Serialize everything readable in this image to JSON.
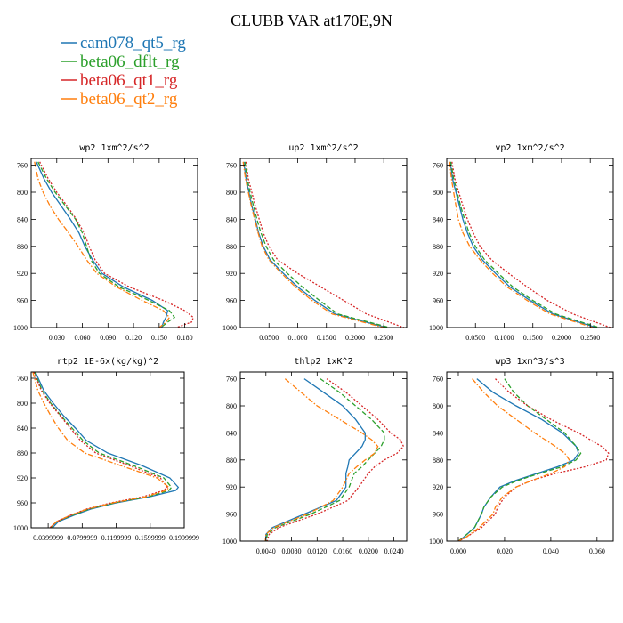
{
  "figure": {
    "title": "CLUBB VAR at170E,9N"
  },
  "legend": [
    {
      "name": "cam078_qt5_rg",
      "color": "#1f77b4",
      "dash": "solid"
    },
    {
      "name": "beta06_dflt_rg",
      "color": "#2ca02c",
      "dash": "dashed"
    },
    {
      "name": "beta06_qt1_rg",
      "color": "#d62728",
      "dash": "dotted"
    },
    {
      "name": "beta06_qt2_rg",
      "color": "#ff7f0e",
      "dash": "dashdot"
    }
  ],
  "chart_data": [
    {
      "type": "line",
      "title": "wp2  1xm^2/s^2",
      "xlim": [
        0,
        0.195
      ],
      "ylim": [
        1000,
        750
      ],
      "xticks": [
        "0.030",
        "0.060",
        "0.090",
        "0.120",
        "0.150",
        "0.180"
      ],
      "xtick_values": [
        0.03,
        0.06,
        0.09,
        0.12,
        0.15,
        0.18
      ],
      "yticks": [
        760,
        800,
        840,
        880,
        920,
        960,
        1000
      ],
      "y": [
        755,
        780,
        800,
        820,
        840,
        860,
        880,
        900,
        920,
        940,
        960,
        975,
        985,
        992,
        1000
      ],
      "series": [
        {
          "name": "cam078_qt5_rg",
          "values": [
            0.006,
            0.015,
            0.024,
            0.035,
            0.046,
            0.056,
            0.063,
            0.072,
            0.083,
            0.108,
            0.142,
            0.16,
            0.158,
            0.155,
            0.153
          ]
        },
        {
          "name": "beta06_dflt_rg",
          "values": [
            0.008,
            0.018,
            0.028,
            0.04,
            0.052,
            0.06,
            0.065,
            0.07,
            0.08,
            0.103,
            0.138,
            0.162,
            0.168,
            0.16,
            0.152
          ]
        },
        {
          "name": "beta06_qt1_rg",
          "values": [
            0.01,
            0.02,
            0.03,
            0.042,
            0.053,
            0.062,
            0.068,
            0.075,
            0.086,
            0.115,
            0.155,
            0.18,
            0.19,
            0.188,
            0.17
          ]
        },
        {
          "name": "beta06_qt2_rg",
          "values": [
            0.004,
            0.008,
            0.014,
            0.022,
            0.032,
            0.044,
            0.055,
            0.065,
            0.077,
            0.1,
            0.13,
            0.155,
            0.162,
            0.158,
            0.15
          ]
        }
      ]
    },
    {
      "type": "line",
      "title": "up2  1xm^2/s^2",
      "xlim": [
        0,
        0.29
      ],
      "ylim": [
        1000,
        750
      ],
      "xticks": [
        "0.0500",
        "0.1000",
        "0.1500",
        "0.2000",
        "0.2500"
      ],
      "xtick_values": [
        0.05,
        0.1,
        0.15,
        0.2,
        0.25
      ],
      "yticks": [
        760,
        800,
        840,
        880,
        920,
        960,
        1000
      ],
      "y": [
        755,
        780,
        800,
        820,
        840,
        860,
        880,
        900,
        920,
        940,
        960,
        980,
        1000
      ],
      "series": [
        {
          "name": "cam078_qt5_rg",
          "values": [
            0.006,
            0.01,
            0.015,
            0.02,
            0.026,
            0.032,
            0.04,
            0.052,
            0.075,
            0.1,
            0.13,
            0.165,
            0.255
          ]
        },
        {
          "name": "beta06_dflt_rg",
          "values": [
            0.008,
            0.012,
            0.017,
            0.023,
            0.029,
            0.036,
            0.045,
            0.058,
            0.082,
            0.108,
            0.138,
            0.17,
            0.26
          ]
        },
        {
          "name": "beta06_qt1_rg",
          "values": [
            0.01,
            0.014,
            0.02,
            0.026,
            0.033,
            0.04,
            0.05,
            0.065,
            0.1,
            0.14,
            0.18,
            0.22,
            0.285
          ]
        },
        {
          "name": "beta06_qt2_rg",
          "values": [
            0.005,
            0.009,
            0.014,
            0.019,
            0.025,
            0.031,
            0.038,
            0.05,
            0.072,
            0.096,
            0.125,
            0.16,
            0.25
          ]
        }
      ]
    },
    {
      "type": "line",
      "title": "vp2  1xm^2/s^2",
      "xlim": [
        0,
        0.29
      ],
      "ylim": [
        1000,
        750
      ],
      "xticks": [
        "0.0500",
        "0.1000",
        "0.1500",
        "0.2000",
        "0.2500"
      ],
      "xtick_values": [
        0.05,
        0.1,
        0.15,
        0.2,
        0.25
      ],
      "yticks": [
        760,
        800,
        840,
        880,
        920,
        960,
        1000
      ],
      "y": [
        755,
        780,
        800,
        820,
        840,
        860,
        880,
        900,
        920,
        940,
        960,
        980,
        1000
      ],
      "series": [
        {
          "name": "cam078_qt5_rg",
          "values": [
            0.006,
            0.01,
            0.016,
            0.022,
            0.028,
            0.036,
            0.046,
            0.062,
            0.085,
            0.11,
            0.145,
            0.185,
            0.26
          ]
        },
        {
          "name": "beta06_dflt_rg",
          "values": [
            0.007,
            0.012,
            0.018,
            0.024,
            0.031,
            0.039,
            0.05,
            0.066,
            0.09,
            0.115,
            0.15,
            0.19,
            0.265
          ]
        },
        {
          "name": "beta06_qt1_rg",
          "values": [
            0.009,
            0.014,
            0.021,
            0.028,
            0.036,
            0.046,
            0.058,
            0.078,
            0.108,
            0.14,
            0.175,
            0.22,
            0.285
          ]
        },
        {
          "name": "beta06_qt2_rg",
          "values": [
            0.005,
            0.008,
            0.012,
            0.016,
            0.02,
            0.028,
            0.04,
            0.058,
            0.08,
            0.105,
            0.14,
            0.18,
            0.255
          ]
        }
      ]
    },
    {
      "type": "line",
      "title": "rtp2  1E-6x(kg/kg)^2",
      "xlim": [
        0.02,
        0.2
      ],
      "ylim": [
        1000,
        750
      ],
      "xticks": [
        "0.0399999",
        "0.0799999",
        "0.1199999",
        "0.1599999",
        "0.1999999"
      ],
      "xtick_values": [
        0.04,
        0.08,
        0.12,
        0.16,
        0.2
      ],
      "yticks": [
        760,
        800,
        840,
        880,
        920,
        960,
        1000
      ],
      "y": [
        750,
        780,
        800,
        820,
        840,
        860,
        880,
        900,
        920,
        935,
        940,
        950,
        960,
        970,
        980,
        990,
        1000
      ],
      "series": [
        {
          "name": "cam078_qt5_rg",
          "values": [
            0.025,
            0.035,
            0.046,
            0.058,
            0.072,
            0.085,
            0.11,
            0.15,
            0.183,
            0.193,
            0.19,
            0.16,
            0.12,
            0.09,
            0.07,
            0.052,
            0.045
          ]
        },
        {
          "name": "beta06_dflt_rg",
          "values": [
            0.024,
            0.033,
            0.043,
            0.055,
            0.068,
            0.081,
            0.1,
            0.14,
            0.176,
            0.185,
            0.182,
            0.158,
            0.118,
            0.088,
            0.068,
            0.05,
            0.043
          ]
        },
        {
          "name": "beta06_qt1_rg",
          "values": [
            0.023,
            0.032,
            0.042,
            0.054,
            0.066,
            0.078,
            0.096,
            0.135,
            0.172,
            0.18,
            0.176,
            0.152,
            0.114,
            0.085,
            0.066,
            0.05,
            0.042
          ]
        },
        {
          "name": "beta06_qt2_rg",
          "values": [
            0.022,
            0.028,
            0.035,
            0.043,
            0.052,
            0.063,
            0.083,
            0.125,
            0.168,
            0.182,
            0.179,
            0.155,
            0.116,
            0.086,
            0.066,
            0.05,
            0.042
          ]
        }
      ]
    },
    {
      "type": "line",
      "title": "thlp2  1xK^2",
      "xlim": [
        0,
        0.026
      ],
      "ylim": [
        1000,
        750
      ],
      "xticks": [
        "0.0040",
        "0.0080",
        "0.0120",
        "0.0160",
        "0.0200",
        "0.0240"
      ],
      "xtick_values": [
        0.004,
        0.008,
        0.012,
        0.016,
        0.02,
        0.024
      ],
      "yticks": [
        760,
        800,
        840,
        880,
        920,
        960,
        1000
      ],
      "y": [
        760,
        780,
        800,
        820,
        840,
        850,
        860,
        870,
        880,
        890,
        900,
        920,
        940,
        960,
        980,
        990,
        1000
      ],
      "series": [
        {
          "name": "cam078_qt5_rg",
          "values": [
            0.01,
            0.013,
            0.016,
            0.018,
            0.0195,
            0.0195,
            0.019,
            0.018,
            0.017,
            0.0168,
            0.0165,
            0.0165,
            0.015,
            0.01,
            0.005,
            0.004,
            0.004
          ]
        },
        {
          "name": "beta06_dflt_rg",
          "values": [
            0.0125,
            0.0155,
            0.018,
            0.0205,
            0.0225,
            0.0225,
            0.022,
            0.021,
            0.02,
            0.019,
            0.0178,
            0.017,
            0.0155,
            0.011,
            0.0055,
            0.0042,
            0.0041
          ]
        },
        {
          "name": "beta06_qt1_rg",
          "values": [
            0.0135,
            0.0165,
            0.019,
            0.0215,
            0.0235,
            0.025,
            0.0255,
            0.0245,
            0.0225,
            0.021,
            0.02,
            0.0185,
            0.0168,
            0.012,
            0.006,
            0.0045,
            0.0042
          ]
        },
        {
          "name": "beta06_qt2_rg",
          "values": [
            0.007,
            0.0095,
            0.012,
            0.0155,
            0.019,
            0.0205,
            0.0215,
            0.021,
            0.0195,
            0.0182,
            0.017,
            0.016,
            0.0145,
            0.0105,
            0.0052,
            0.004,
            0.0039
          ]
        }
      ]
    },
    {
      "type": "line",
      "title": "wp3  1xm^3/s^3",
      "xlim": [
        -0.005,
        0.067
      ],
      "ylim": [
        1000,
        750
      ],
      "xticks": [
        "0.000",
        "0.020",
        "0.040",
        "0.060"
      ],
      "xtick_values": [
        0,
        0.02,
        0.04,
        0.06
      ],
      "yticks": [
        760,
        800,
        840,
        880,
        920,
        960,
        1000
      ],
      "y": [
        760,
        780,
        800,
        820,
        840,
        860,
        870,
        880,
        890,
        900,
        910,
        920,
        935,
        950,
        960,
        980,
        995,
        1000
      ],
      "series": [
        {
          "name": "cam078_qt5_rg",
          "values": [
            0.008,
            0.015,
            0.025,
            0.036,
            0.045,
            0.051,
            0.052,
            0.05,
            0.043,
            0.034,
            0.025,
            0.018,
            0.014,
            0.011,
            0.01,
            0.007,
            0.002,
            0.0
          ]
        },
        {
          "name": "beta06_dflt_rg",
          "values": [
            0.02,
            0.024,
            0.03,
            0.038,
            0.046,
            0.051,
            0.053,
            0.051,
            0.045,
            0.035,
            0.026,
            0.019,
            0.014,
            0.011,
            0.01,
            0.007,
            0.002,
            0.0
          ]
        },
        {
          "name": "beta06_qt1_rg",
          "values": [
            0.016,
            0.022,
            0.03,
            0.04,
            0.052,
            0.062,
            0.065,
            0.064,
            0.055,
            0.042,
            0.032,
            0.025,
            0.02,
            0.017,
            0.016,
            0.01,
            0.003,
            0.0
          ]
        },
        {
          "name": "beta06_qt2_rg",
          "values": [
            0.006,
            0.011,
            0.017,
            0.025,
            0.033,
            0.042,
            0.046,
            0.048,
            0.046,
            0.04,
            0.032,
            0.025,
            0.019,
            0.016,
            0.015,
            0.009,
            0.003,
            0.0
          ]
        }
      ]
    }
  ]
}
